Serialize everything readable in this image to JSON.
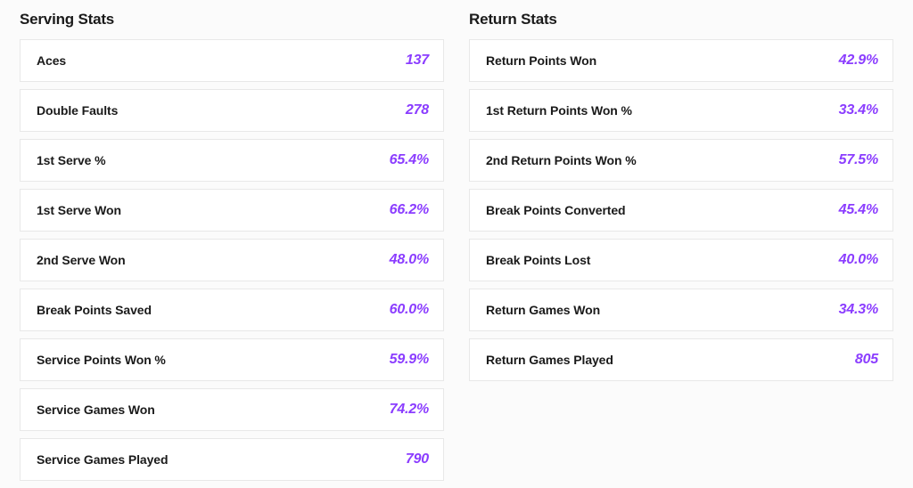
{
  "value_color": "#8b3dff",
  "label_color": "#1a1a1a",
  "row_bg": "#ffffff",
  "row_border": "#e8e8e8",
  "page_bg": "#fbfbfb",
  "serving": {
    "title": "Serving Stats",
    "rows": [
      {
        "label": "Aces",
        "value": "137"
      },
      {
        "label": "Double Faults",
        "value": "278"
      },
      {
        "label": "1st Serve %",
        "value": "65.4%"
      },
      {
        "label": "1st Serve Won",
        "value": "66.2%"
      },
      {
        "label": "2nd Serve Won",
        "value": "48.0%"
      },
      {
        "label": "Break Points Saved",
        "value": "60.0%"
      },
      {
        "label": "Service Points Won %",
        "value": "59.9%"
      },
      {
        "label": "Service Games Won",
        "value": "74.2%"
      },
      {
        "label": "Service Games Played",
        "value": "790"
      }
    ]
  },
  "return": {
    "title": "Return Stats",
    "rows": [
      {
        "label": "Return Points Won",
        "value": "42.9%"
      },
      {
        "label": "1st Return Points Won %",
        "value": "33.4%"
      },
      {
        "label": "2nd Return Points Won %",
        "value": "57.5%"
      },
      {
        "label": "Break Points Converted",
        "value": "45.4%"
      },
      {
        "label": "Break Points Lost",
        "value": "40.0%"
      },
      {
        "label": "Return Games Won",
        "value": "34.3%"
      },
      {
        "label": "Return Games Played",
        "value": "805"
      }
    ]
  }
}
